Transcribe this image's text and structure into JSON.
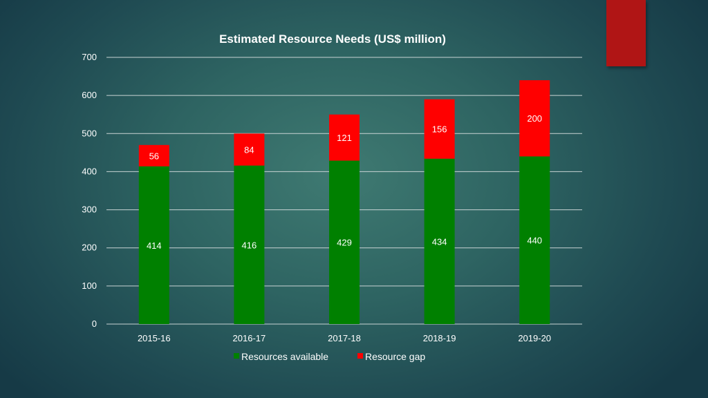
{
  "chart_data": {
    "type": "bar",
    "stacked": true,
    "title": "Estimated Resource Needs (US$ million)",
    "xlabel": "",
    "ylabel": "",
    "categories": [
      "2015-16",
      "2016-17",
      "2017-18",
      "2018-19",
      "2019-20"
    ],
    "series": [
      {
        "name": "Resources available",
        "color": "#008000",
        "values": [
          414,
          416,
          429,
          434,
          440
        ]
      },
      {
        "name": "Resource gap",
        "color": "#ff0000",
        "values": [
          56,
          84,
          121,
          156,
          200
        ]
      }
    ],
    "ylim": [
      0,
      700
    ],
    "yticks": [
      "0",
      "100",
      "200",
      "300",
      "400",
      "500",
      "600",
      "700"
    ],
    "grid": true,
    "legend_position": "bottom",
    "data_labels": true
  },
  "colors": {
    "accent_block": "#b01515",
    "gridline": "#c9d4d4"
  }
}
